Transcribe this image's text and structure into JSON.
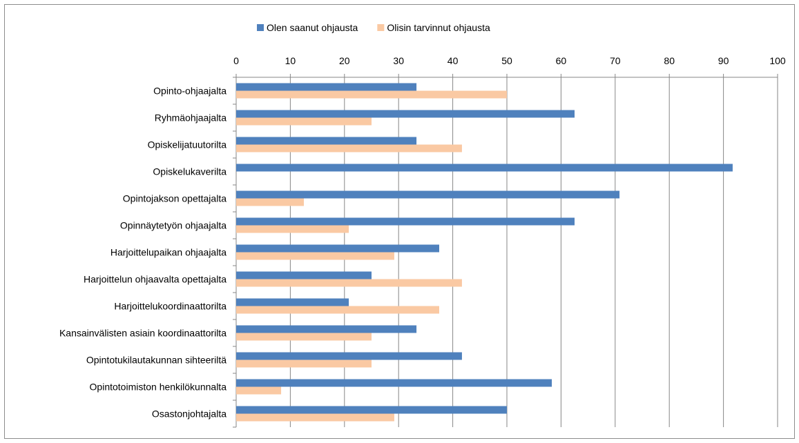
{
  "chart_data": {
    "type": "bar",
    "orientation": "horizontal",
    "title": "",
    "xlabel": "",
    "ylabel": "",
    "xlim": [
      0,
      100
    ],
    "ticks": [
      0,
      10,
      20,
      30,
      40,
      50,
      60,
      70,
      80,
      90,
      100
    ],
    "grid": "vertical",
    "legend_position": "top",
    "categories": [
      "Opinto-ohjaajalta",
      "Ryhmäohjaajalta",
      "Opiskelijatuutorilta",
      "Opiskelukaverilta",
      "Opintojakson opettajalta",
      "Opinnäytetyön ohjaajalta",
      "Harjoittelupaikan ohjaajalta",
      "Harjoittelun ohjaavalta opettajalta",
      "Harjoittelukoordinaattorilta",
      "Kansainvälisten asiain koordinaattorilta",
      "Opintotukilautakunnan sihteeriltä",
      "Opintotoimiston henkilökunnalta",
      "Osastonjohtajalta"
    ],
    "series": [
      {
        "name": "Olen saanut ohjausta",
        "color": "#4f81bd",
        "values": [
          33.3,
          62.5,
          33.3,
          91.7,
          70.8,
          62.5,
          37.5,
          25.0,
          20.8,
          33.3,
          41.7,
          58.3,
          50.0
        ]
      },
      {
        "name": "Olisin tarvinnut ohjausta",
        "color": "#fac9a3",
        "values": [
          50.0,
          25.0,
          41.7,
          0,
          12.5,
          20.8,
          29.2,
          41.7,
          37.5,
          25.0,
          25.0,
          8.3,
          29.2
        ]
      }
    ]
  }
}
